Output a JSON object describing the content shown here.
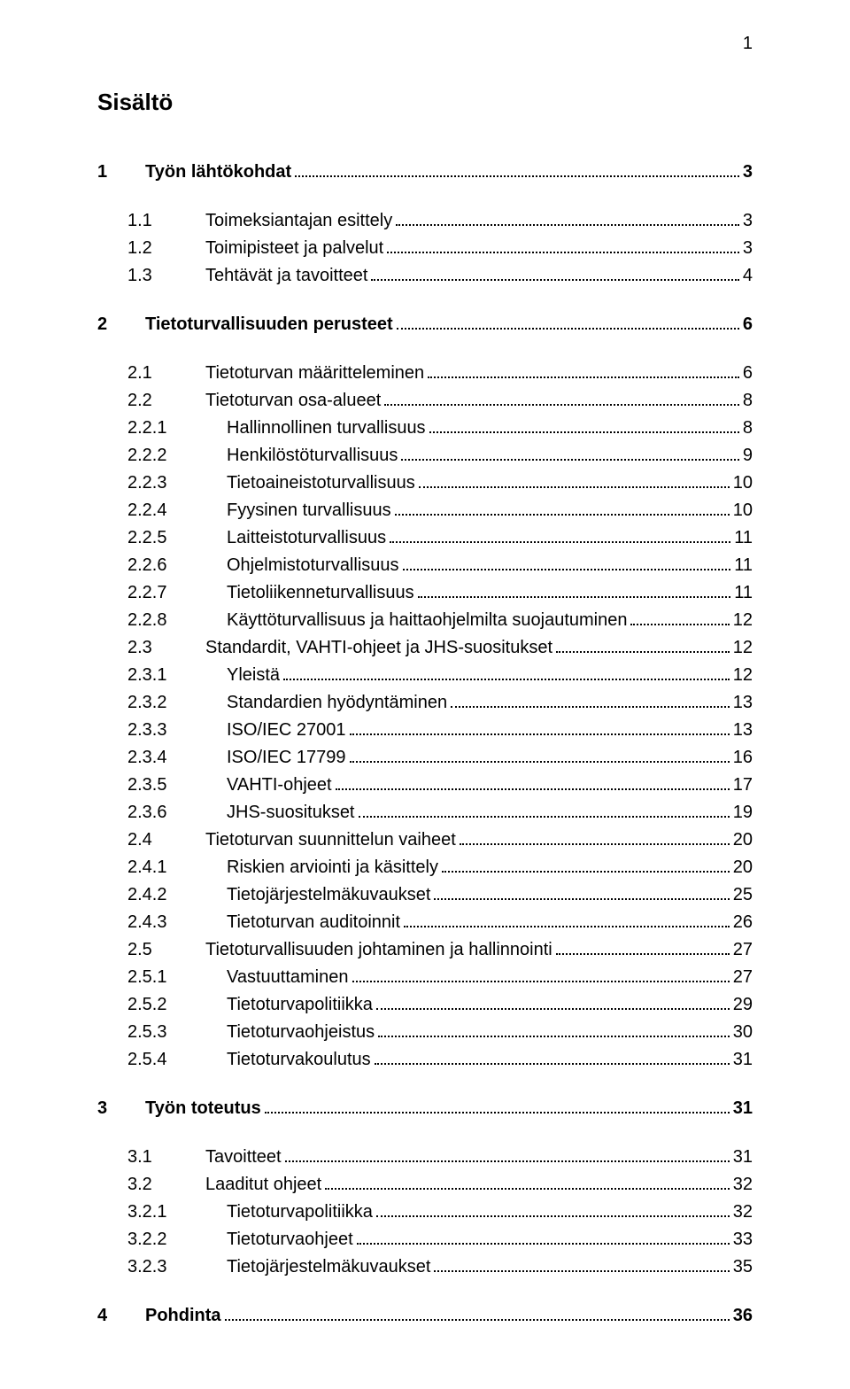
{
  "pageNumber": "1",
  "title": "Sisältö",
  "entries": [
    {
      "num": "1",
      "text": "Työn lähtökohdat",
      "page": "3",
      "indent": 0,
      "bold": true,
      "gapBefore": false
    },
    {
      "num": "1.1",
      "text": "Toimeksiantajan esittely",
      "page": "3",
      "indent": 1,
      "bold": false,
      "gapBefore": true
    },
    {
      "num": "1.2",
      "text": "Toimipisteet ja palvelut",
      "page": "3",
      "indent": 1,
      "bold": false,
      "gapBefore": false
    },
    {
      "num": "1.3",
      "text": "Tehtävät ja tavoitteet",
      "page": "4",
      "indent": 1,
      "bold": false,
      "gapBefore": false
    },
    {
      "num": "2",
      "text": "Tietoturvallisuuden perusteet",
      "page": "6",
      "indent": 0,
      "bold": true,
      "gapBefore": true
    },
    {
      "num": "2.1",
      "text": "Tietoturvan määritteleminen",
      "page": "6",
      "indent": 1,
      "bold": false,
      "gapBefore": true
    },
    {
      "num": "2.2",
      "text": "Tietoturvan osa-alueet",
      "page": "8",
      "indent": 1,
      "bold": false,
      "gapBefore": false
    },
    {
      "num": "2.2.1",
      "text": "Hallinnollinen turvallisuus",
      "page": "8",
      "indent": 2,
      "bold": false,
      "gapBefore": false
    },
    {
      "num": "2.2.2",
      "text": "Henkilöstöturvallisuus",
      "page": "9",
      "indent": 2,
      "bold": false,
      "gapBefore": false
    },
    {
      "num": "2.2.3",
      "text": "Tietoaineistoturvallisuus",
      "page": "10",
      "indent": 2,
      "bold": false,
      "gapBefore": false
    },
    {
      "num": "2.2.4",
      "text": "Fyysinen turvallisuus",
      "page": "10",
      "indent": 2,
      "bold": false,
      "gapBefore": false
    },
    {
      "num": "2.2.5",
      "text": "Laitteistoturvallisuus",
      "page": "11",
      "indent": 2,
      "bold": false,
      "gapBefore": false
    },
    {
      "num": "2.2.6",
      "text": "Ohjelmistoturvallisuus",
      "page": "11",
      "indent": 2,
      "bold": false,
      "gapBefore": false
    },
    {
      "num": "2.2.7",
      "text": "Tietoliikenneturvallisuus",
      "page": "11",
      "indent": 2,
      "bold": false,
      "gapBefore": false
    },
    {
      "num": "2.2.8",
      "text": "Käyttöturvallisuus ja haittaohjelmilta suojautuminen",
      "page": "12",
      "indent": 2,
      "bold": false,
      "gapBefore": false
    },
    {
      "num": "2.3",
      "text": "Standardit, VAHTI-ohjeet ja JHS-suositukset",
      "page": "12",
      "indent": 1,
      "bold": false,
      "gapBefore": false
    },
    {
      "num": "2.3.1",
      "text": "Yleistä",
      "page": "12",
      "indent": 2,
      "bold": false,
      "gapBefore": false
    },
    {
      "num": "2.3.2",
      "text": "Standardien hyödyntäminen",
      "page": "13",
      "indent": 2,
      "bold": false,
      "gapBefore": false
    },
    {
      "num": "2.3.3",
      "text": "ISO/IEC 27001",
      "page": "13",
      "indent": 2,
      "bold": false,
      "gapBefore": false
    },
    {
      "num": "2.3.4",
      "text": "ISO/IEC 17799",
      "page": "16",
      "indent": 2,
      "bold": false,
      "gapBefore": false
    },
    {
      "num": "2.3.5",
      "text": "VAHTI-ohjeet",
      "page": "17",
      "indent": 2,
      "bold": false,
      "gapBefore": false
    },
    {
      "num": "2.3.6",
      "text": "JHS-suositukset",
      "page": "19",
      "indent": 2,
      "bold": false,
      "gapBefore": false
    },
    {
      "num": "2.4",
      "text": "Tietoturvan suunnittelun vaiheet",
      "page": "20",
      "indent": 1,
      "bold": false,
      "gapBefore": false
    },
    {
      "num": "2.4.1",
      "text": "Riskien arviointi ja käsittely",
      "page": "20",
      "indent": 2,
      "bold": false,
      "gapBefore": false
    },
    {
      "num": "2.4.2",
      "text": "Tietojärjestelmäkuvaukset",
      "page": "25",
      "indent": 2,
      "bold": false,
      "gapBefore": false
    },
    {
      "num": "2.4.3",
      "text": "Tietoturvan auditoinnit",
      "page": "26",
      "indent": 2,
      "bold": false,
      "gapBefore": false
    },
    {
      "num": "2.5",
      "text": "Tietoturvallisuuden johtaminen ja hallinnointi",
      "page": "27",
      "indent": 1,
      "bold": false,
      "gapBefore": false
    },
    {
      "num": "2.5.1",
      "text": "Vastuuttaminen",
      "page": "27",
      "indent": 2,
      "bold": false,
      "gapBefore": false
    },
    {
      "num": "2.5.2",
      "text": "Tietoturvapolitiikka",
      "page": "29",
      "indent": 2,
      "bold": false,
      "gapBefore": false
    },
    {
      "num": "2.5.3",
      "text": "Tietoturvaohjeistus",
      "page": "30",
      "indent": 2,
      "bold": false,
      "gapBefore": false
    },
    {
      "num": "2.5.4",
      "text": "Tietoturvakoulutus",
      "page": "31",
      "indent": 2,
      "bold": false,
      "gapBefore": false
    },
    {
      "num": "3",
      "text": "Työn toteutus",
      "page": "31",
      "indent": 0,
      "bold": true,
      "gapBefore": true
    },
    {
      "num": "3.1",
      "text": "Tavoitteet",
      "page": "31",
      "indent": 1,
      "bold": false,
      "gapBefore": true
    },
    {
      "num": "3.2",
      "text": "Laaditut ohjeet",
      "page": "32",
      "indent": 1,
      "bold": false,
      "gapBefore": false
    },
    {
      "num": "3.2.1",
      "text": "Tietoturvapolitiikka",
      "page": "32",
      "indent": 2,
      "bold": false,
      "gapBefore": false
    },
    {
      "num": "3.2.2",
      "text": "Tietoturvaohjeet",
      "page": "33",
      "indent": 2,
      "bold": false,
      "gapBefore": false
    },
    {
      "num": "3.2.3",
      "text": "Tietojärjestelmäkuvaukset",
      "page": "35",
      "indent": 2,
      "bold": false,
      "gapBefore": false
    },
    {
      "num": "4",
      "text": "Pohdinta",
      "page": "36",
      "indent": 0,
      "bold": true,
      "gapBefore": true
    }
  ]
}
